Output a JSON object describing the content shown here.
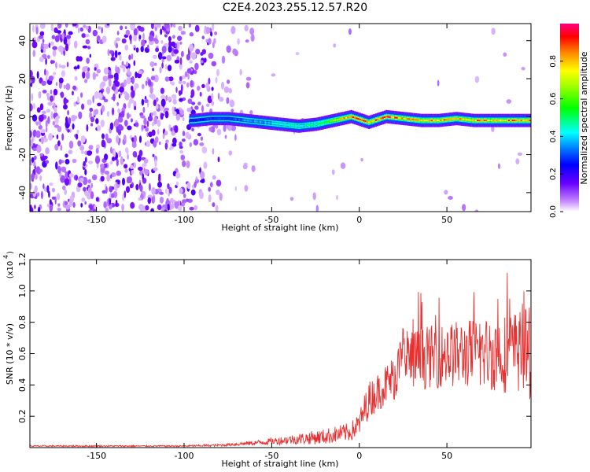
{
  "title": "C2E4.2023.255.12.57.R20",
  "chart_data": [
    {
      "type": "heatmap",
      "xlabel": "Height of straight line (km)",
      "ylabel": "Frequency (Hz)",
      "xlim": [
        -188,
        98
      ],
      "ylim": [
        -50,
        49
      ],
      "x_ticks": [
        -150,
        -100,
        -50,
        0,
        50
      ],
      "y_ticks": [
        -40,
        -20,
        0,
        20,
        40
      ],
      "colorbar": {
        "label": "Normalized spectral amplitude",
        "range": [
          0.0,
          1.0
        ],
        "ticks": [
          0.0,
          0.2,
          0.4,
          0.6,
          0.8
        ]
      },
      "ridge": {
        "x": [
          -95,
          -85,
          -75,
          -65,
          -55,
          -45,
          -35,
          -25,
          -15,
          -5,
          5,
          15,
          25,
          35,
          45,
          55,
          65,
          75,
          85,
          95
        ],
        "y": [
          -2,
          -1,
          -1,
          -2,
          -3,
          -4,
          -5,
          -4,
          -2,
          0,
          -3,
          0,
          -1,
          -2,
          -2,
          -1,
          -2,
          -2,
          -2,
          -2
        ],
        "peak_amplitude": [
          0.25,
          0.3,
          0.3,
          0.35,
          0.4,
          0.45,
          0.45,
          0.5,
          0.7,
          0.9,
          0.85,
          0.95,
          0.8,
          0.85,
          0.85,
          0.8,
          0.85,
          0.8,
          0.85,
          0.85
        ]
      },
      "noise_region_x": [
        -188,
        -80
      ]
    },
    {
      "type": "line",
      "xlabel": "Height of straight line (km)",
      "ylabel": "SNR (10 * v/v)",
      "y_multiplier_label": "(x10",
      "y_multiplier_exp": "4",
      "xlim": [
        -188,
        98
      ],
      "ylim": [
        0,
        1.2
      ],
      "x_ticks": [
        -150,
        -100,
        -50,
        0,
        50
      ],
      "y_ticks": [
        0.2,
        0.4,
        0.6,
        0.8,
        1.0,
        1.2
      ],
      "series_color": "#e83030",
      "envelope": {
        "x": [
          -188,
          -100,
          -80,
          -60,
          -40,
          -20,
          -5,
          0,
          5,
          10,
          20,
          25,
          40,
          60,
          80,
          95,
          98
        ],
        "mean": [
          0.01,
          0.01,
          0.015,
          0.03,
          0.05,
          0.07,
          0.1,
          0.15,
          0.3,
          0.35,
          0.45,
          0.55,
          0.58,
          0.6,
          0.6,
          0.62,
          0.6
        ],
        "spread": [
          0.005,
          0.005,
          0.008,
          0.015,
          0.03,
          0.05,
          0.06,
          0.08,
          0.12,
          0.12,
          0.15,
          0.2,
          0.2,
          0.22,
          0.25,
          0.28,
          0.3
        ]
      }
    }
  ]
}
